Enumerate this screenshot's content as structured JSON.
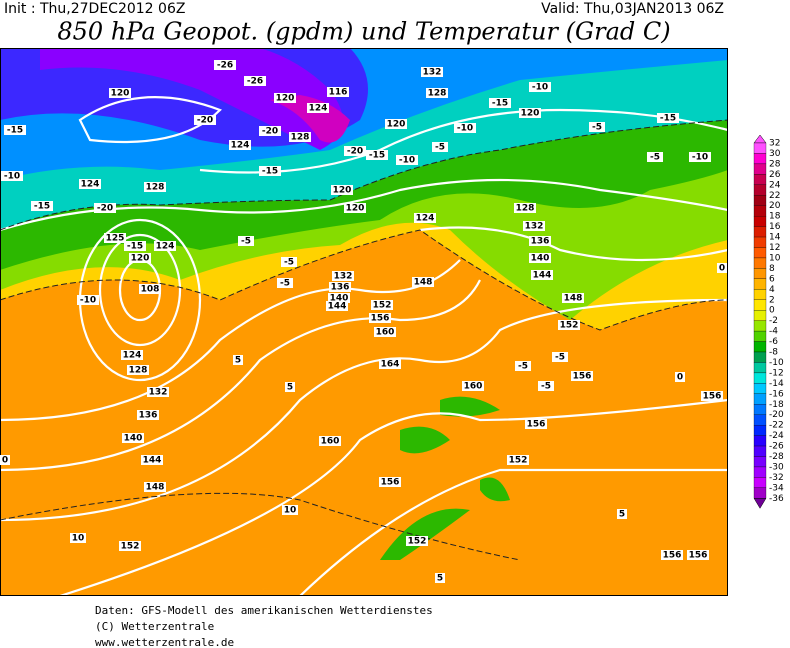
{
  "header": {
    "init": "Init : Thu,27DEC2012 06Z",
    "valid": "Valid: Thu,03JAN2013 06Z",
    "title": "850 hPa Geopot. (gpdm) und Temperatur (Grad C)"
  },
  "footer": [
    "Daten: GFS-Modell des amerikanischen Wetterdienstes",
    "(C) Wetterzentrale",
    "www.wetterzentrale.de"
  ],
  "colorbar": {
    "labels": [
      "32",
      "30",
      "28",
      "26",
      "24",
      "22",
      "20",
      "18",
      "16",
      "14",
      "12",
      "10",
      "8",
      "6",
      "4",
      "2",
      "0",
      "-2",
      "-4",
      "-6",
      "-8",
      "-10",
      "-12",
      "-14",
      "-16",
      "-18",
      "-20",
      "-22",
      "-24",
      "-26",
      "-28",
      "-30",
      "-32",
      "-34",
      "-36"
    ],
    "colors": [
      "#ff50ff",
      "#ff00d0",
      "#e0008c",
      "#c80050",
      "#b4002c",
      "#a00014",
      "#b4000a",
      "#c80000",
      "#dc1e00",
      "#f03c00",
      "#ff5a00",
      "#ff7800",
      "#ff9600",
      "#ffb400",
      "#ffd200",
      "#ffe600",
      "#e6f000",
      "#96e600",
      "#50d200",
      "#00b400",
      "#00a050",
      "#00c8a0",
      "#00e6dc",
      "#00c8ff",
      "#00a0ff",
      "#0078ff",
      "#0050ff",
      "#0028ff",
      "#2800ff",
      "#5000ff",
      "#7800ff",
      "#a000ff",
      "#c800ff",
      "#a000c8",
      "#6e0096"
    ]
  },
  "map": {
    "geopotential_labels": [
      "120",
      "124",
      "128",
      "124",
      "128",
      "124",
      "120",
      "116",
      "132",
      "128",
      "120",
      "120",
      "120",
      "124",
      "128",
      "132",
      "136",
      "140",
      "144",
      "148",
      "152",
      "156",
      "156",
      "156",
      "156",
      "152",
      "148",
      "144",
      "140",
      "136",
      "132",
      "128",
      "124",
      "108",
      "125",
      "124",
      "120",
      "132",
      "136",
      "140",
      "144",
      "152",
      "156",
      "160",
      "164",
      "160",
      "160",
      "156",
      "152",
      "152",
      "156",
      "148",
      "120"
    ],
    "temperature_labels": [
      "-26",
      "-26",
      "-20",
      "-20",
      "-15",
      "-10",
      "-15",
      "-15",
      "-10",
      "-20",
      "-20",
      "-15",
      "-15",
      "-15",
      "-10",
      "-10",
      "-5",
      "-5",
      "-10",
      "-15",
      "-10",
      "-5",
      "-5",
      "-5",
      "-5",
      "5",
      "5",
      "0",
      "10",
      "10",
      "5",
      "5",
      "0",
      "-5",
      "-5",
      "-5",
      "0"
    ]
  }
}
